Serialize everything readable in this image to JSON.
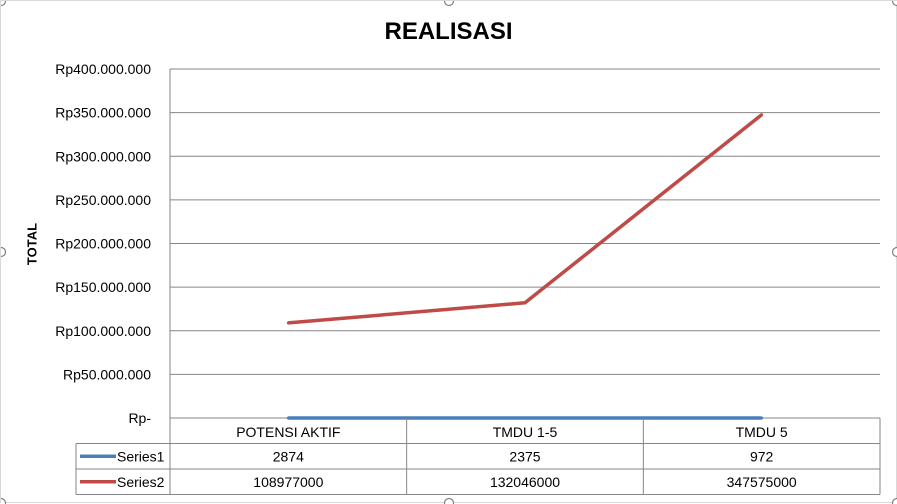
{
  "chart_data": {
    "type": "line",
    "title": "REALISASI",
    "xlabel": "",
    "ylabel": "TOTAL",
    "categories": [
      "POTENSI AKTIF",
      "TMDU 1-5",
      "TMDU 5"
    ],
    "series": [
      {
        "name": "Series1",
        "values": [
          2874,
          2375,
          972
        ],
        "color": "#4a7ebb"
      },
      {
        "name": "Series2",
        "values": [
          108977000,
          132046000,
          347575000
        ],
        "color": "#be4b48"
      }
    ],
    "ylim": [
      0,
      400000000
    ],
    "yticks": [
      0,
      50000000,
      100000000,
      150000000,
      200000000,
      250000000,
      300000000,
      350000000,
      400000000
    ],
    "ytick_labels": [
      "Rp-",
      "Rp50.000.000",
      "Rp100.000.000",
      "Rp150.000.000",
      "Rp200.000.000",
      "Rp250.000.000",
      "Rp300.000.000",
      "Rp350.000.000",
      "Rp400.000.000"
    ],
    "table_values": [
      [
        "2874",
        "2375",
        "972"
      ],
      [
        "108977000",
        "132046000",
        "347575000"
      ]
    ],
    "grid": true,
    "legend": "data-table"
  }
}
